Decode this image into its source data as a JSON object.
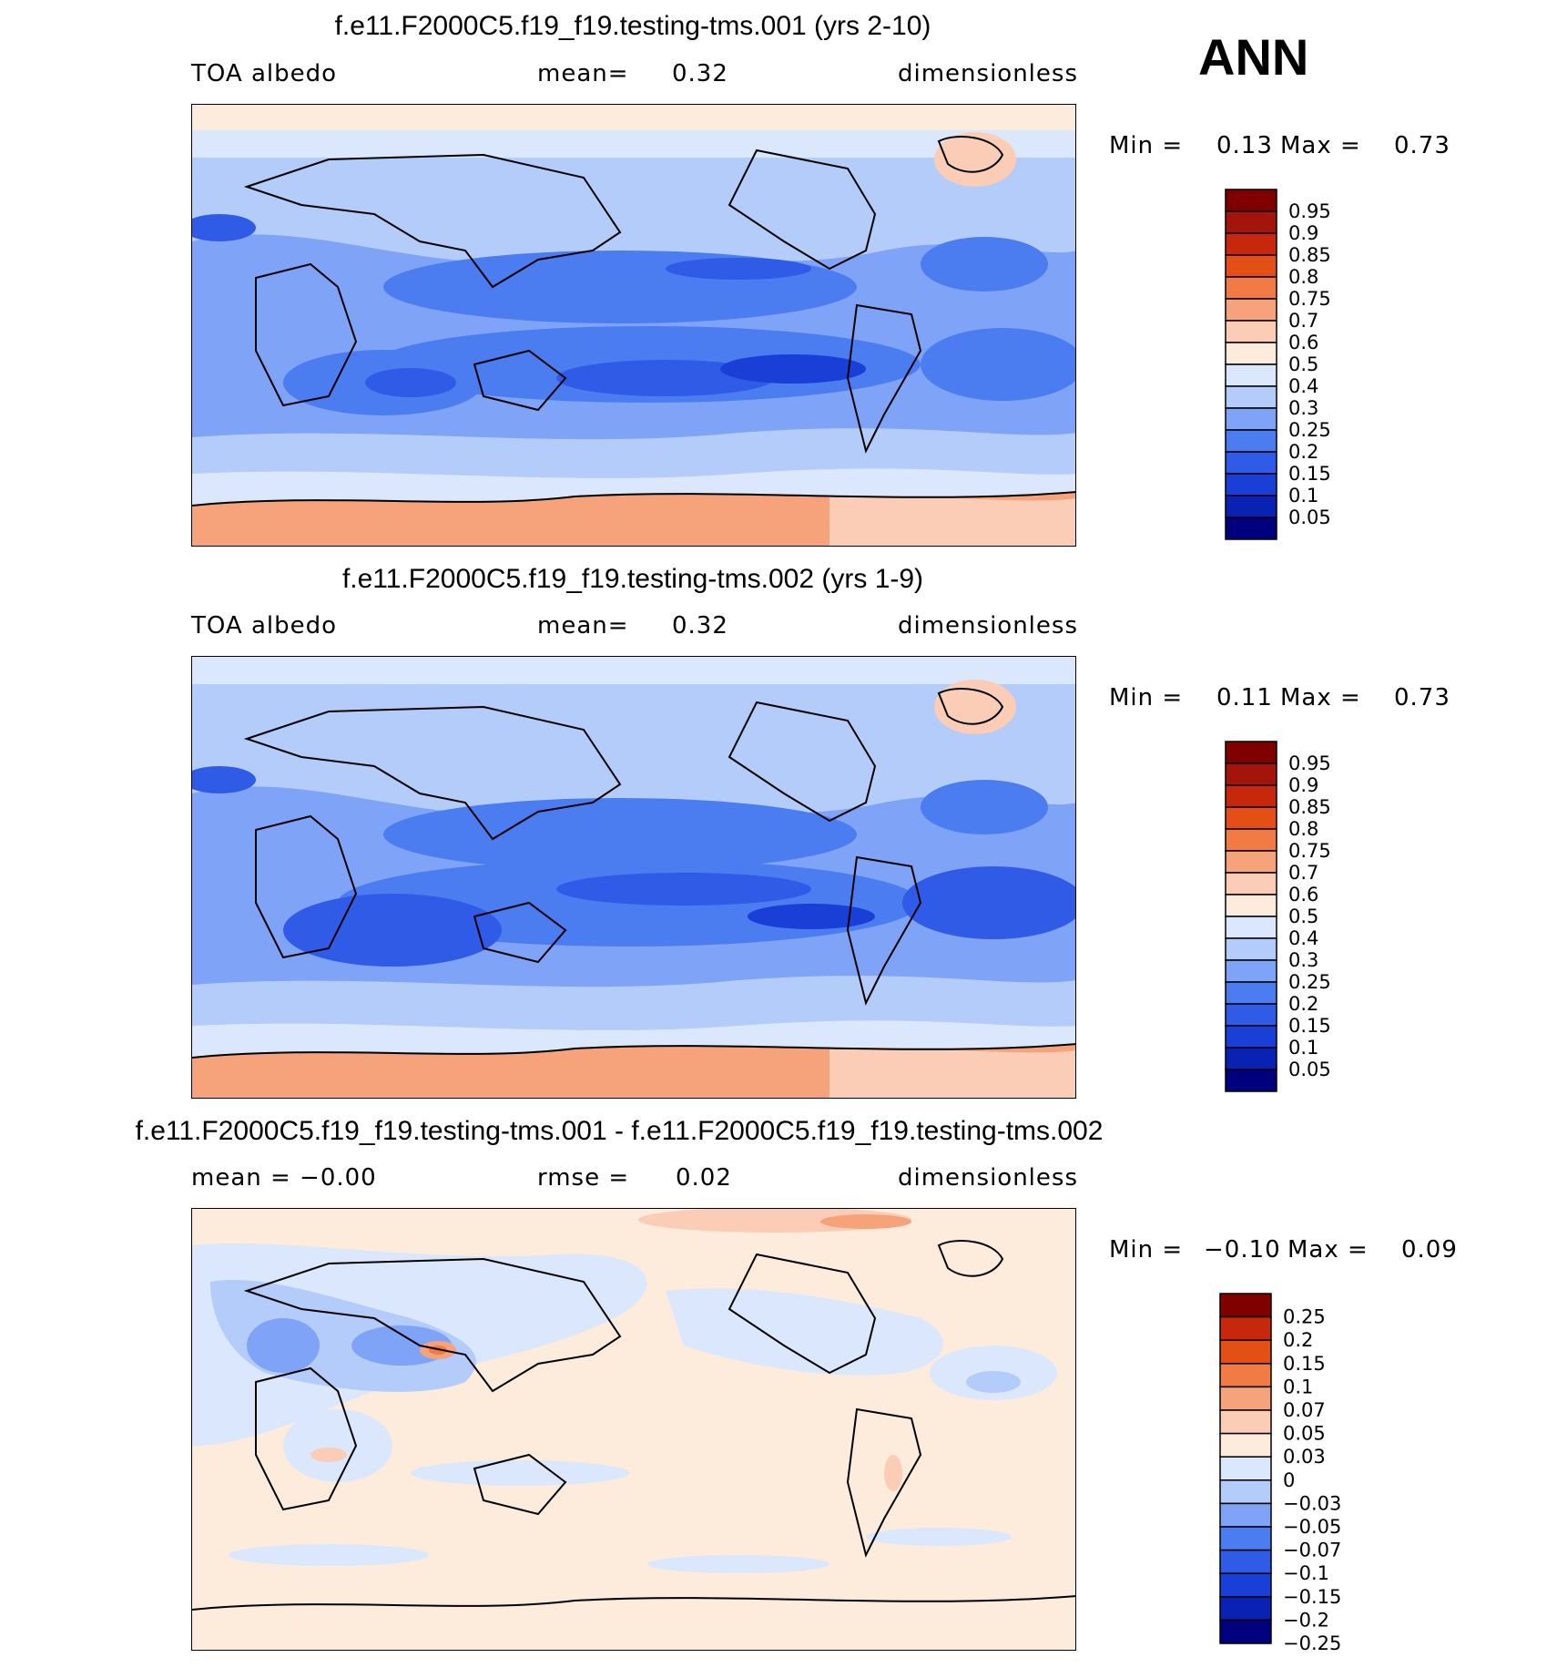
{
  "season": "ANN",
  "palettes": {
    "abs": [
      "#00007f",
      "#0a22b4",
      "#1a3fd6",
      "#2f5be7",
      "#4b7cf0",
      "#7ea3f7",
      "#b3ccfa",
      "#dbe7fc",
      "#fdebdc",
      "#fbcdb6",
      "#f6a27a",
      "#f27a45",
      "#e44f16",
      "#c7270a",
      "#a3150a",
      "#800000"
    ],
    "diff": [
      "#00007f",
      "#0a22b4",
      "#1a3fd6",
      "#2f5be7",
      "#4b7cf0",
      "#7ea3f7",
      "#b3ccfa",
      "#dbe7fc",
      "#fdebdc",
      "#fbcdb6",
      "#f6a27a",
      "#f27a45",
      "#e44f16",
      "#c7270a",
      "#800000"
    ]
  },
  "panels": [
    {
      "id": "test",
      "title": "f.e11.F2000C5.f19_f19.testing-tms.001 (yrs 2-10)",
      "left_label": "TOA albedo",
      "mid_label": "mean=",
      "mid_value": "0.32",
      "units": "dimensionless",
      "min_label": "Min =",
      "min_value": "0.13",
      "max_label": "Max =",
      "max_value": "0.73",
      "colorbar": {
        "palette": "abs",
        "levels": [
          "0.95",
          "0.9",
          "0.85",
          "0.8",
          "0.75",
          "0.7",
          "0.6",
          "0.5",
          "0.4",
          "0.3",
          "0.25",
          "0.2",
          "0.15",
          "0.1",
          "0.05"
        ]
      }
    },
    {
      "id": "control",
      "title": "f.e11.F2000C5.f19_f19.testing-tms.002 (yrs 1-9)",
      "left_label": "TOA albedo",
      "mid_label": "mean=",
      "mid_value": "0.32",
      "units": "dimensionless",
      "min_label": "Min =",
      "min_value": "0.11",
      "max_label": "Max =",
      "max_value": "0.73",
      "colorbar": {
        "palette": "abs",
        "levels": [
          "0.95",
          "0.9",
          "0.85",
          "0.8",
          "0.75",
          "0.7",
          "0.6",
          "0.5",
          "0.4",
          "0.3",
          "0.25",
          "0.2",
          "0.15",
          "0.1",
          "0.05"
        ]
      }
    },
    {
      "id": "diff",
      "title": "f.e11.F2000C5.f19_f19.testing-tms.001 - f.e11.F2000C5.f19_f19.testing-tms.002",
      "left_label": "mean =  −0.00",
      "mid_label": "rmse =",
      "mid_value": "0.02",
      "units": "dimensionless",
      "min_label": "Min =",
      "min_value": "−0.10",
      "max_label": "Max =",
      "max_value": "0.09",
      "colorbar": {
        "palette": "diff",
        "levels": [
          "0.25",
          "0.2",
          "0.15",
          "0.1",
          "0.07",
          "0.05",
          "0.03",
          "0",
          "−0.03",
          "−0.05",
          "−0.07",
          "−0.1",
          "−0.15",
          "−0.2",
          "−0.25"
        ]
      }
    }
  ]
}
